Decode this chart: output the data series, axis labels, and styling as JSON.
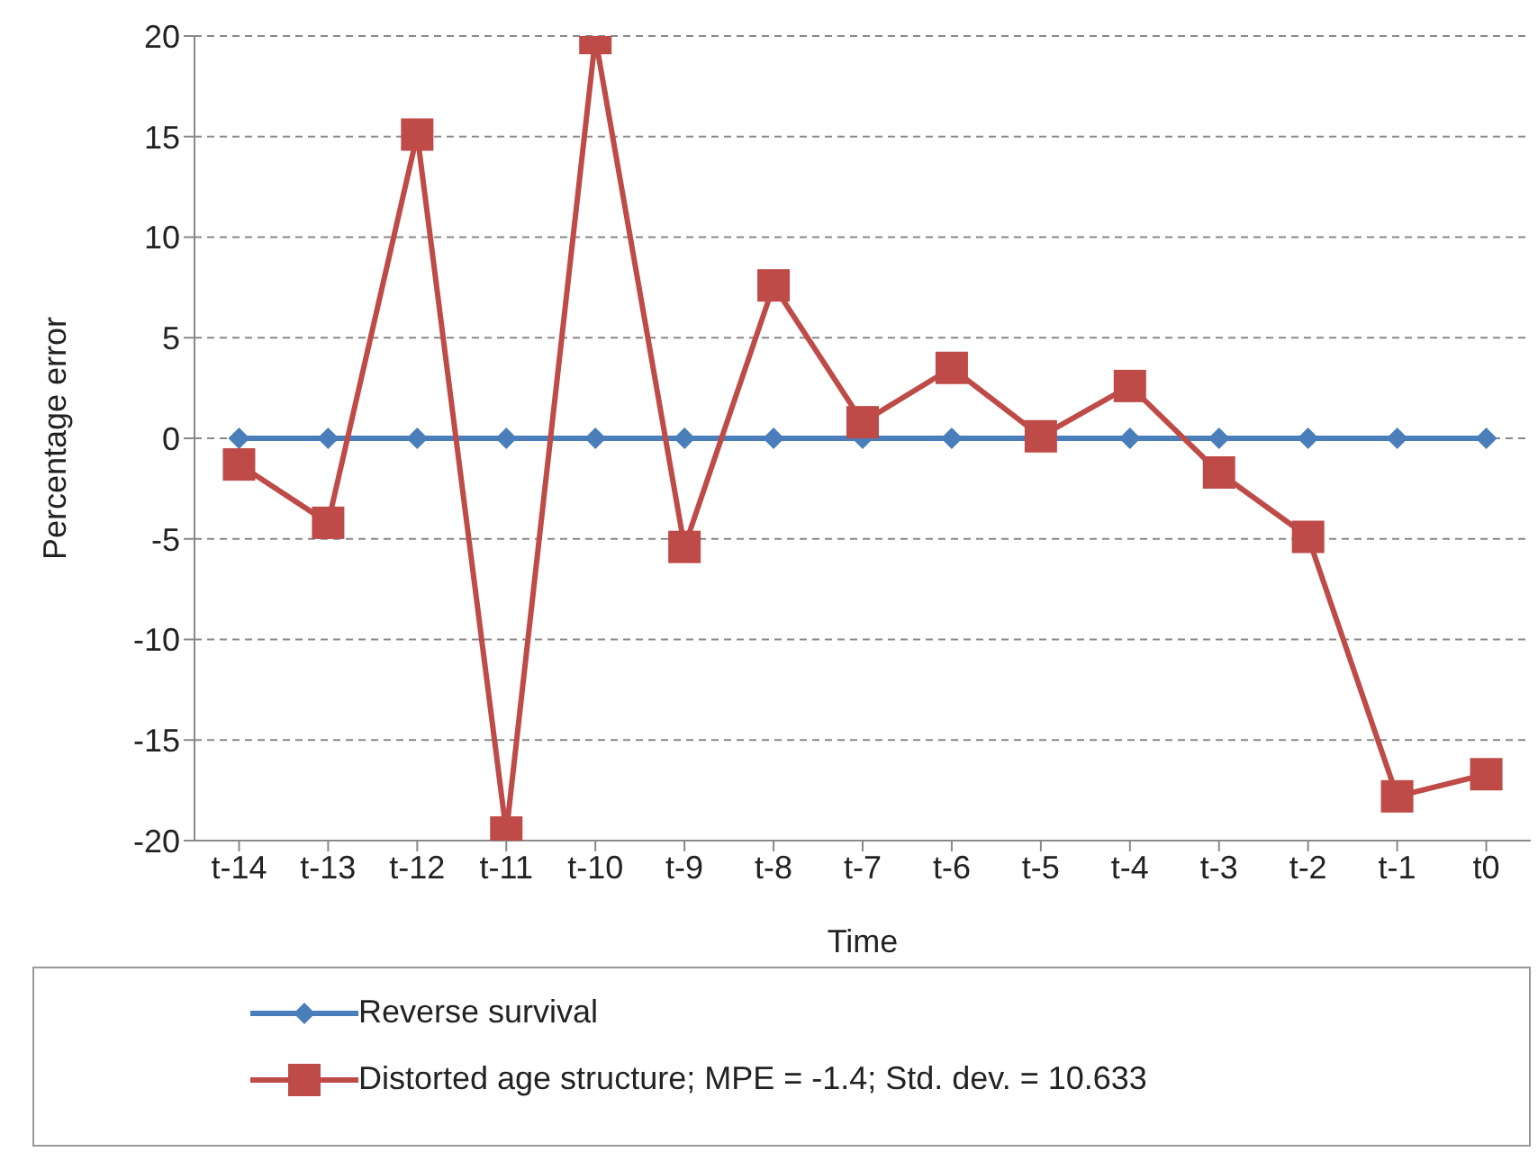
{
  "chart_data": {
    "type": "line",
    "xlabel": "Time",
    "ylabel": "Percentage error",
    "categories": [
      "t-14",
      "t-13",
      "t-12",
      "t-11",
      "t-10",
      "t-9",
      "t-8",
      "t-7",
      "t-6",
      "t-5",
      "t-4",
      "t-3",
      "t-2",
      "t-1",
      "t0"
    ],
    "series": [
      {
        "name": "Reverse survival",
        "color": "#4a7ebb",
        "marker": "diamond",
        "values": [
          0,
          0,
          0,
          0,
          0,
          0,
          0,
          0,
          0,
          0,
          0,
          0,
          0,
          0,
          0
        ]
      },
      {
        "name": "Distorted age structure; MPE = -1.4; Std. dev. = 10.633",
        "color": "#be4b48",
        "marker": "square",
        "values": [
          -1.3,
          -4.2,
          15.1,
          -19.6,
          19.9,
          -5.4,
          7.6,
          0.8,
          3.5,
          0.1,
          2.6,
          -1.7,
          -4.9,
          -17.8,
          -16.7
        ]
      }
    ],
    "ylim": [
      -20,
      20
    ],
    "yticks": [
      -20,
      -15,
      -10,
      -5,
      0,
      5,
      10,
      15,
      20
    ],
    "grid": "y",
    "legend": "bottom"
  }
}
